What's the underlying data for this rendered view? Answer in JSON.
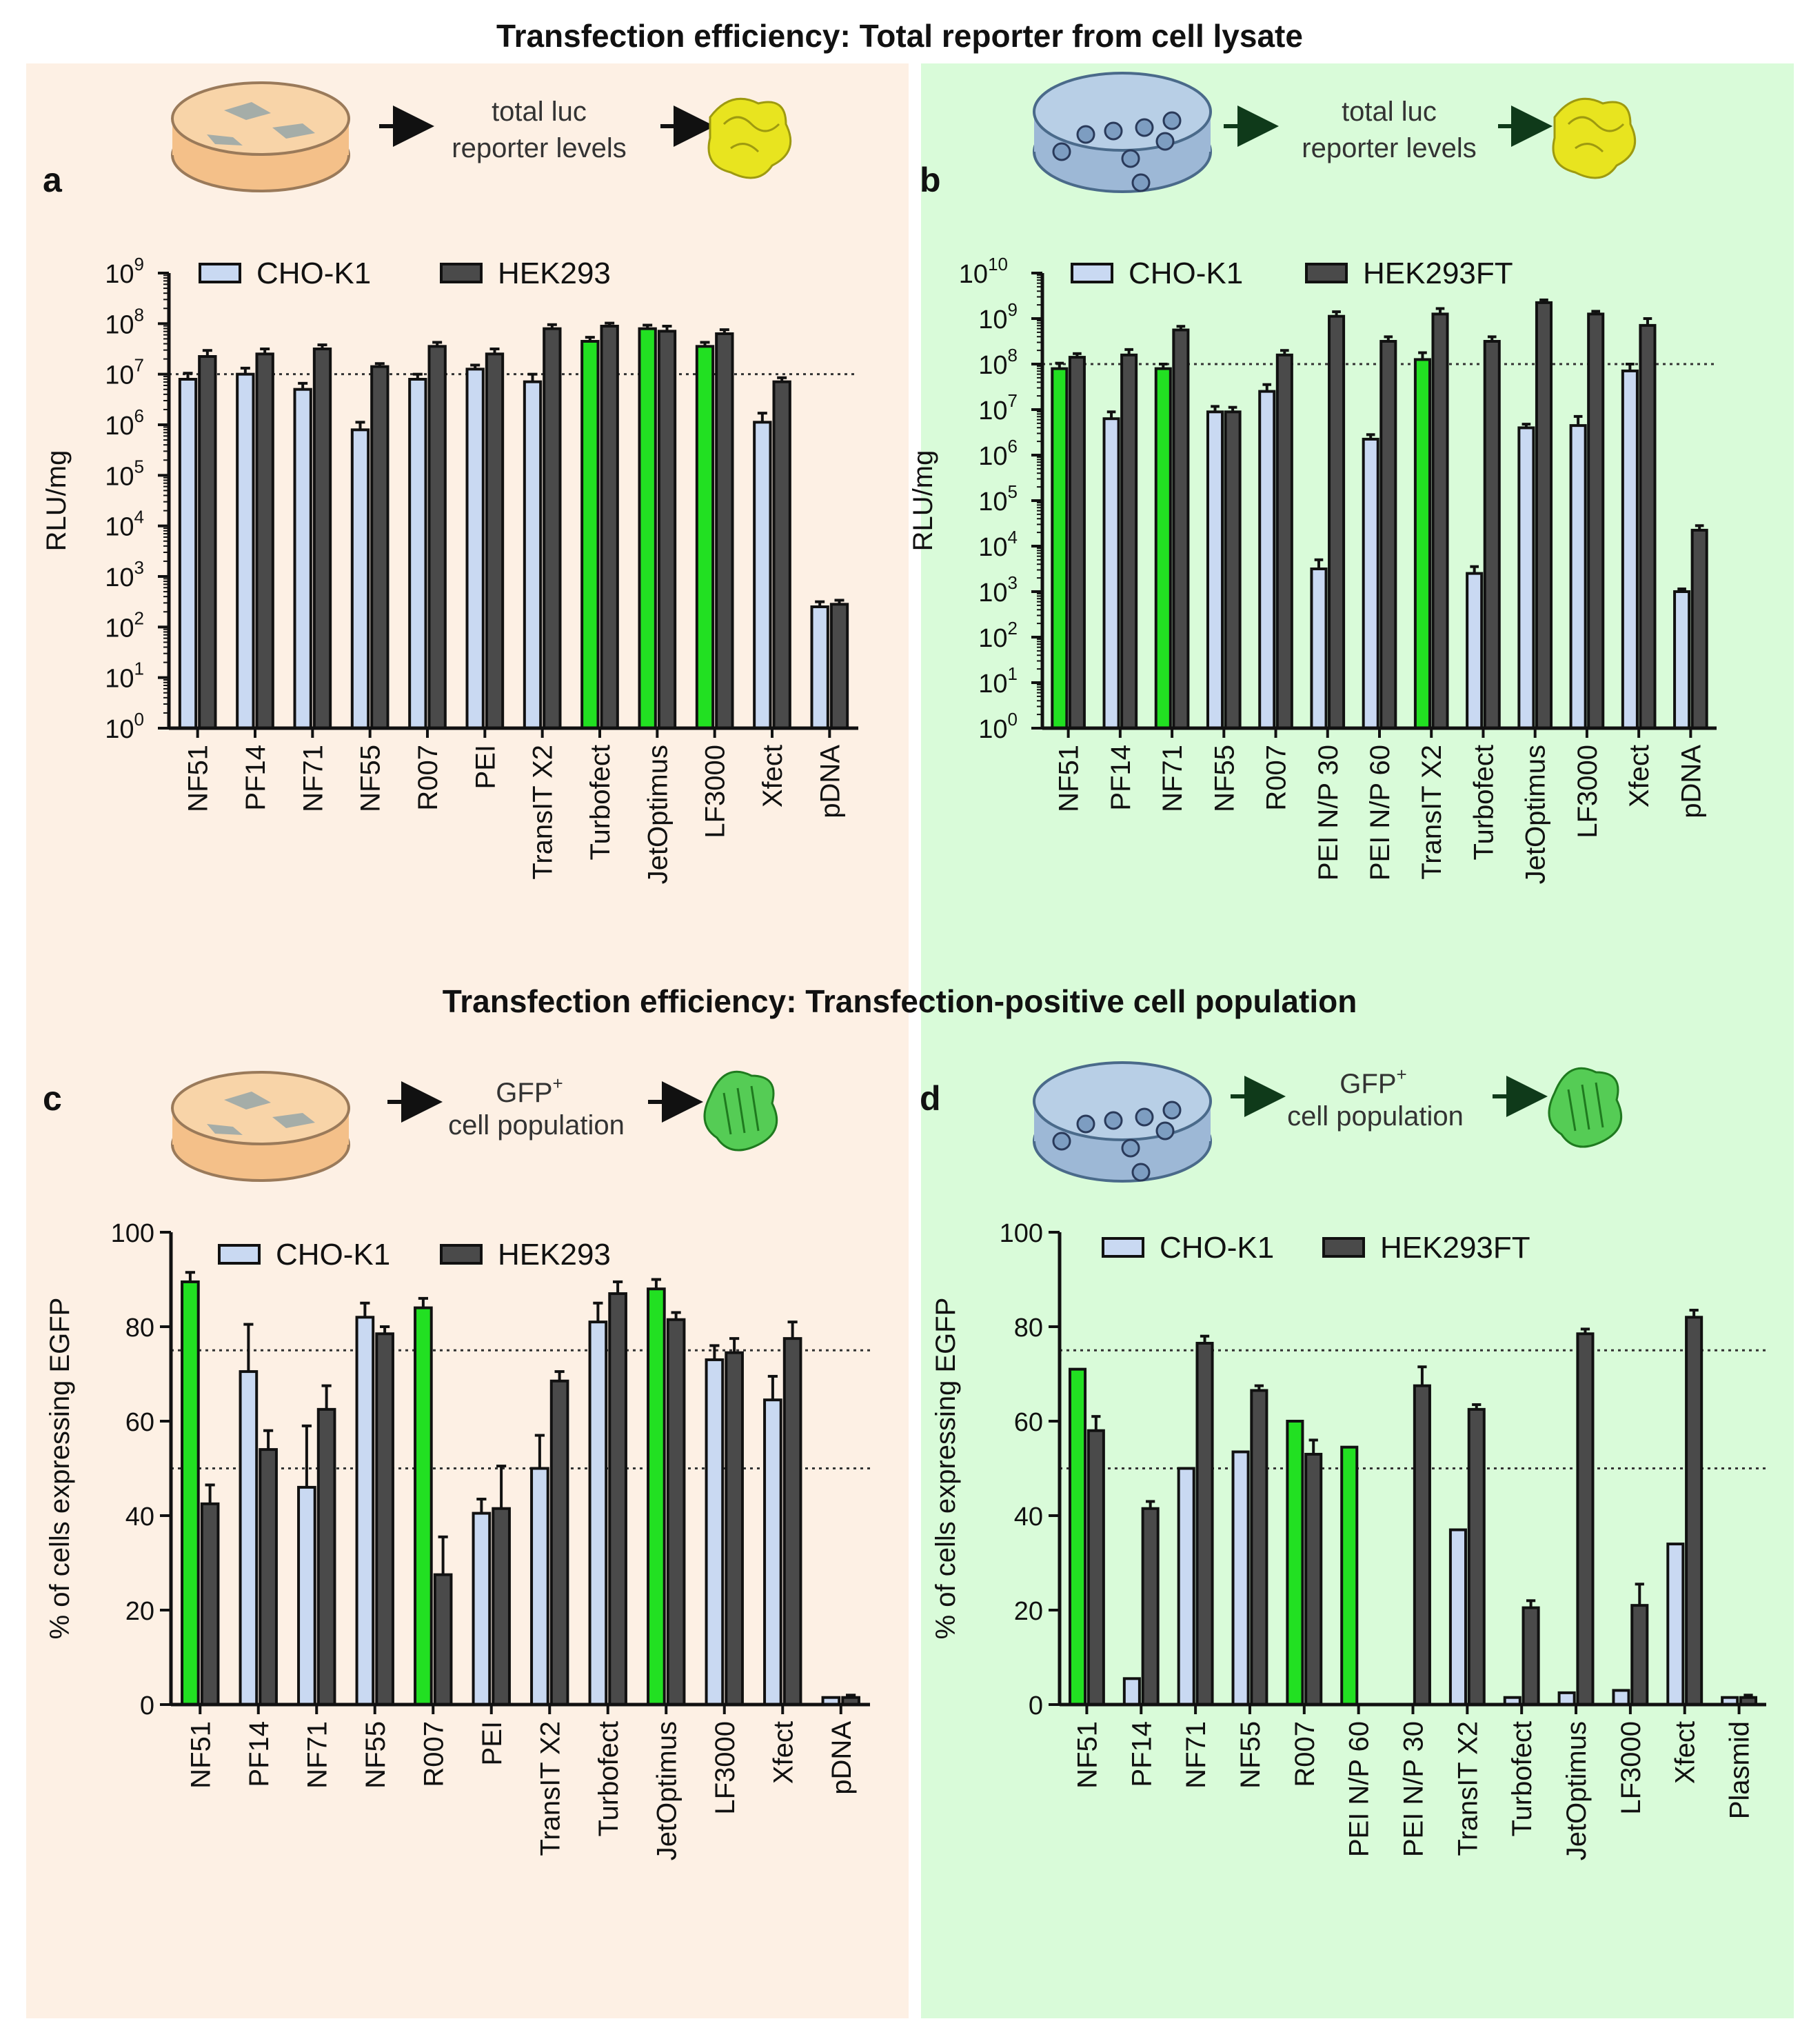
{
  "headings": {
    "top": "Transfection efficiency: Total reporter from cell lysate",
    "middle": "Transfection efficiency: Transfection-positive cell population"
  },
  "schematics": {
    "luc_line1": "total luc",
    "luc_line2": "reporter levels",
    "gfp_line1": "GFP",
    "gfp_sup": "+",
    "gfp_line2": "cell population"
  },
  "colors": {
    "bg_left": "#fdf0e4",
    "bg_right": "#d9fbd9",
    "cho_fill": "#c9d9f2",
    "hek_fill": "#4a4a4a",
    "green_fill": "#22e022",
    "edge": "#111111",
    "dish_orange": "#f4c089",
    "dish_blue": "#9db8d6"
  },
  "chart_data": [
    {
      "panel": "a",
      "type": "bar",
      "scale": "log",
      "title": "",
      "xlabel": "",
      "ylabel": "RLU/mg",
      "ylim_exp": [
        0,
        9
      ],
      "reference_line_exp": 7,
      "categories": [
        "NF51",
        "PF14",
        "NF71",
        "NF55",
        "R007",
        "PEI",
        "TransIT X2",
        "Turbofect",
        "JetOptimus",
        "LF3000",
        "Xfect",
        "pDNA"
      ],
      "highlight": [
        "Turbofect",
        "JetOptimus",
        "LF3000"
      ],
      "series": [
        {
          "name": "CHO-K1",
          "exp": [
            6.9,
            7.0,
            6.7,
            5.9,
            6.9,
            7.1,
            6.85,
            7.65,
            7.9,
            7.55,
            6.05,
            2.4
          ],
          "err": [
            0.12,
            0.12,
            0.12,
            0.15,
            0.1,
            0.08,
            0.15,
            0.08,
            0.07,
            0.08,
            0.18,
            0.1
          ]
        },
        {
          "name": "HEK293",
          "exp": [
            7.35,
            7.4,
            7.5,
            7.15,
            7.55,
            7.4,
            7.9,
            7.95,
            7.85,
            7.8,
            6.85,
            2.45
          ],
          "err": [
            0.12,
            0.1,
            0.08,
            0.06,
            0.08,
            0.1,
            0.08,
            0.06,
            0.1,
            0.08,
            0.08,
            0.08
          ]
        }
      ]
    },
    {
      "panel": "b",
      "type": "bar",
      "scale": "log",
      "title": "",
      "xlabel": "",
      "ylabel": "RLU/mg",
      "ylim_exp": [
        0,
        10
      ],
      "reference_line_exp": 8,
      "categories": [
        "NF51",
        "PF14",
        "NF71",
        "NF55",
        "R007",
        "PEI N/P 30",
        "PEI N/P 60",
        "TransIT X2",
        "Turbofect",
        "JetOptimus",
        "LF3000",
        "Xfect",
        "pDNA"
      ],
      "highlight": [
        "NF51",
        "NF71",
        "TransIT X2"
      ],
      "series": [
        {
          "name": "CHO-K1",
          "exp": [
            7.9,
            6.8,
            7.9,
            6.95,
            7.4,
            3.5,
            6.35,
            8.1,
            3.4,
            6.6,
            6.65,
            7.85,
            3.0
          ],
          "err": [
            0.12,
            0.15,
            0.1,
            0.12,
            0.15,
            0.2,
            0.1,
            0.15,
            0.15,
            0.08,
            0.2,
            0.15,
            0.06
          ]
        },
        {
          "name": "HEK293FT",
          "exp": [
            8.15,
            8.2,
            8.75,
            6.95,
            8.2,
            9.05,
            8.5,
            9.1,
            8.5,
            9.35,
            9.1,
            8.85,
            4.35
          ],
          "err": [
            0.08,
            0.12,
            0.08,
            0.1,
            0.1,
            0.1,
            0.1,
            0.12,
            0.1,
            0.06,
            0.06,
            0.15,
            0.1
          ]
        }
      ]
    },
    {
      "panel": "c",
      "type": "bar",
      "scale": "linear",
      "title": "",
      "xlabel": "",
      "ylabel": "% of cells expressing EGFP",
      "ylim": [
        0,
        100
      ],
      "yticks": [
        0,
        20,
        40,
        60,
        80,
        100
      ],
      "reference_lines": [
        75,
        50
      ],
      "categories": [
        "NF51",
        "PF14",
        "NF71",
        "NF55",
        "R007",
        "PEI",
        "TransIT X2",
        "Turbofect",
        "JetOptimus",
        "LF3000",
        "Xfect",
        "pDNA"
      ],
      "highlight": [
        "NF51",
        "R007",
        "JetOptimus"
      ],
      "series": [
        {
          "name": "CHO-K1",
          "values": [
            89.5,
            70.5,
            46,
            82,
            84,
            40.5,
            50,
            81,
            88,
            73,
            64.5,
            1.5
          ],
          "err": [
            2,
            10,
            13,
            3,
            2,
            3,
            7,
            4,
            2,
            3,
            5,
            0
          ]
        },
        {
          "name": "HEK293",
          "values": [
            42.5,
            54,
            62.5,
            78.5,
            27.5,
            41.5,
            68.5,
            87,
            81.5,
            74.5,
            77.5,
            1.5
          ],
          "err": [
            4,
            4,
            5,
            1.5,
            8,
            9,
            2,
            2.5,
            1.5,
            3,
            3.5,
            0.5
          ]
        }
      ]
    },
    {
      "panel": "d",
      "type": "bar",
      "scale": "linear",
      "title": "",
      "xlabel": "",
      "ylabel": "% of cells expressing EGFP",
      "ylim": [
        0,
        100
      ],
      "yticks": [
        0,
        20,
        40,
        60,
        80,
        100
      ],
      "reference_lines": [
        75,
        50
      ],
      "categories": [
        "NF51",
        "PF14",
        "NF71",
        "NF55",
        "R007",
        "PEI N/P 60",
        "PEI N/P 30",
        "TransIT X2",
        "Turbofect",
        "JetOptimus",
        "LF3000",
        "Xfect",
        "Plasmid"
      ],
      "highlight": [
        "NF51",
        "R007",
        "PEI N/P 60"
      ],
      "series": [
        {
          "name": "CHO-K1",
          "values": [
            71,
            5.5,
            50,
            53.5,
            60,
            54.5,
            0,
            37,
            1.5,
            2.5,
            3,
            34,
            1.5
          ],
          "err": [
            0,
            0,
            0,
            0,
            0,
            0,
            0,
            0,
            0,
            0,
            0,
            0,
            0
          ]
        },
        {
          "name": "HEK293FT",
          "values": [
            58,
            41.5,
            76.5,
            66.5,
            53,
            0,
            67.5,
            62.5,
            20.5,
            78.5,
            21,
            82,
            1.5
          ],
          "err": [
            3,
            1.5,
            1.5,
            1,
            3,
            0,
            4,
            1,
            1.5,
            1,
            4.5,
            1.5,
            0.5
          ]
        }
      ]
    }
  ]
}
